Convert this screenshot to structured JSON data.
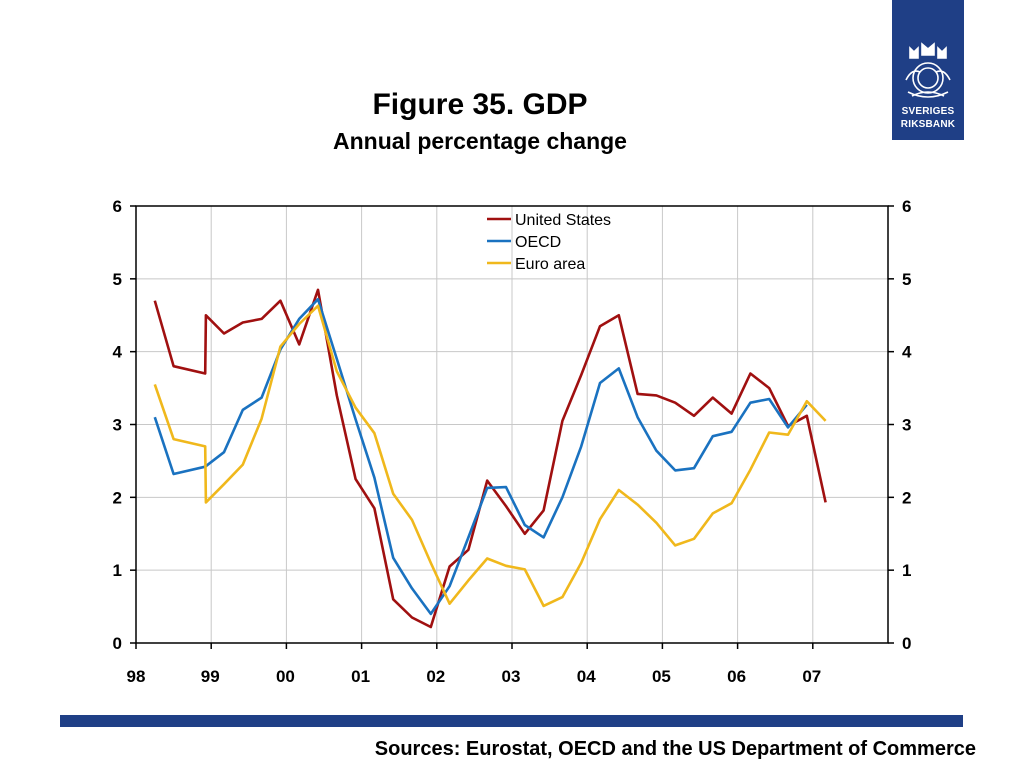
{
  "header": {
    "title": "Figure 35. GDP",
    "subtitle": "Annual percentage change"
  },
  "logo": {
    "line1": "SVERIGES",
    "line2": "RIKSBANK"
  },
  "footer": {
    "sources": "Sources: Eurostat, OECD and the US Department of Commerce"
  },
  "colors": {
    "us": "#a01010",
    "oecd": "#1a72c0",
    "euro": "#f0b81c",
    "brand": "#1f3f86"
  },
  "chart_data": {
    "type": "line",
    "x_ticks": [
      "98",
      "99",
      "00",
      "01",
      "02",
      "03",
      "04",
      "05",
      "06",
      "07"
    ],
    "x_range": [
      1998.0,
      2008.0
    ],
    "y_ticks": [
      "0",
      "1",
      "2",
      "3",
      "4",
      "5",
      "6"
    ],
    "ylim": [
      0,
      6
    ],
    "grid": true,
    "legend_position": "top-center",
    "series": [
      {
        "name": "United States",
        "color": "#a01010",
        "x": [
          1998.25,
          1998.5,
          1998.92,
          1998.93,
          1999.17,
          1999.42,
          1999.67,
          1999.92,
          2000.17,
          2000.42,
          2000.67,
          2000.92,
          2001.17,
          2001.42,
          2001.67,
          2001.92,
          2002.17,
          2002.42,
          2002.67,
          2002.92,
          2003.17,
          2003.42,
          2003.67,
          2003.92,
          2004.17,
          2004.42,
          2004.67,
          2004.92,
          2005.17,
          2005.42,
          2005.67,
          2005.92,
          2006.17,
          2006.42,
          2006.67,
          2006.92,
          2007.17
        ],
        "values": [
          4.7,
          3.8,
          3.7,
          4.5,
          4.25,
          4.4,
          4.45,
          4.7,
          4.1,
          4.85,
          3.4,
          2.25,
          1.85,
          0.6,
          0.35,
          0.22,
          1.05,
          1.28,
          2.23,
          1.88,
          1.5,
          1.82,
          3.05,
          3.68,
          4.35,
          4.5,
          3.42,
          3.4,
          3.3,
          3.12,
          3.37,
          3.15,
          3.7,
          3.5,
          2.98,
          3.12,
          1.93
        ]
      },
      {
        "name": "OECD",
        "color": "#1a72c0",
        "x": [
          1998.25,
          1998.5,
          1998.92,
          1999.17,
          1999.42,
          1999.67,
          1999.92,
          2000.17,
          2000.42,
          2000.67,
          2000.92,
          2001.17,
          2001.42,
          2001.67,
          2001.92,
          2002.17,
          2002.42,
          2002.67,
          2002.92,
          2003.17,
          2003.42,
          2003.67,
          2003.92,
          2004.17,
          2004.42,
          2004.67,
          2004.92,
          2005.17,
          2005.42,
          2005.67,
          2005.92,
          2006.17,
          2006.42,
          2006.67,
          2006.92
        ],
        "values": [
          3.1,
          2.32,
          2.42,
          2.62,
          3.2,
          3.37,
          4.03,
          4.45,
          4.72,
          3.9,
          3.07,
          2.27,
          1.17,
          0.75,
          0.4,
          0.78,
          1.45,
          2.13,
          2.14,
          1.62,
          1.45,
          2.0,
          2.7,
          3.57,
          3.77,
          3.1,
          2.64,
          2.37,
          2.4,
          2.84,
          2.9,
          3.3,
          3.35,
          2.96,
          3.27
        ]
      },
      {
        "name": "Euro area",
        "color": "#f0b81c",
        "x": [
          1998.25,
          1998.5,
          1998.92,
          1998.93,
          1999.17,
          1999.42,
          1999.67,
          1999.92,
          2000.17,
          2000.42,
          2000.67,
          2000.92,
          2001.17,
          2001.42,
          2001.67,
          2001.92,
          2002.17,
          2002.42,
          2002.67,
          2002.92,
          2003.17,
          2003.42,
          2003.67,
          2003.92,
          2004.17,
          2004.42,
          2004.67,
          2004.92,
          2005.17,
          2005.42,
          2005.67,
          2005.92,
          2006.17,
          2006.42,
          2006.67,
          2006.92,
          2007.17
        ],
        "values": [
          3.55,
          2.8,
          2.7,
          1.93,
          2.18,
          2.45,
          3.08,
          4.07,
          4.38,
          4.63,
          3.73,
          3.23,
          2.88,
          2.05,
          1.69,
          1.1,
          0.54,
          0.86,
          1.16,
          1.06,
          1.01,
          0.51,
          0.63,
          1.1,
          1.7,
          2.1,
          1.9,
          1.65,
          1.34,
          1.43,
          1.78,
          1.92,
          2.38,
          2.89,
          2.86,
          3.32,
          3.05
        ]
      }
    ]
  }
}
